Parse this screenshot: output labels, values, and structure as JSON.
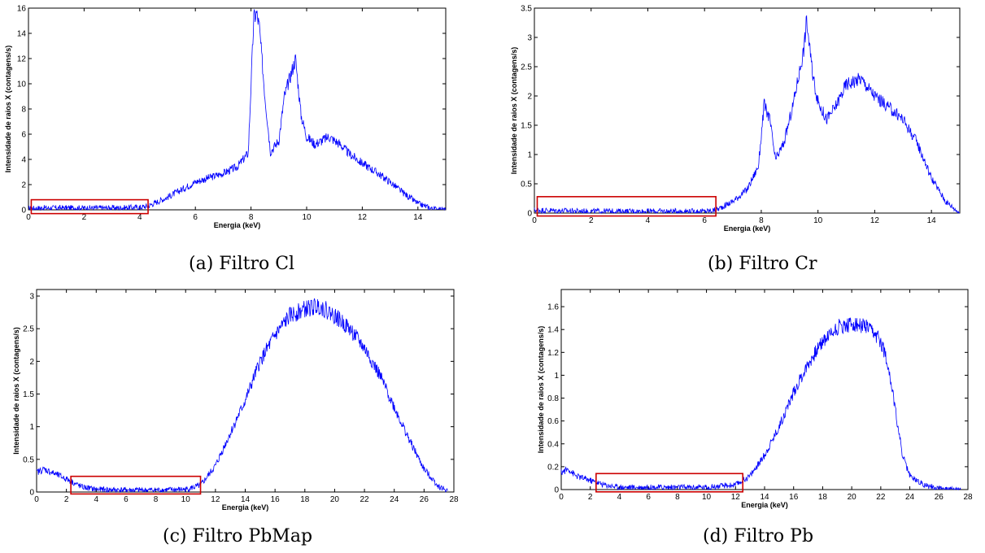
{
  "chart_data": [
    {
      "id": "a",
      "type": "line",
      "caption": "(a) Filtro Cl",
      "xlabel": "Energia (keV)",
      "ylabel": "Intensidade de raios X (contagens/s)",
      "xlim": [
        0,
        15
      ],
      "ylim": [
        0,
        16
      ],
      "xticks": [
        0,
        2,
        4,
        6,
        8,
        10,
        12,
        14
      ],
      "yticks": [
        0,
        2,
        4,
        6,
        8,
        10,
        12,
        14,
        16
      ],
      "line_color": "#0000ff",
      "highlight_color": "#cc0000",
      "highlight_region": {
        "x": [
          0.1,
          4.3
        ],
        "y": [
          -0.3,
          0.8
        ]
      },
      "series": [
        {
          "x": [
            0,
            0.5,
            1,
            2,
            3,
            4,
            4.3,
            5,
            6,
            7,
            7.5,
            7.9,
            8.1,
            8.2,
            8.3,
            8.5,
            8.7,
            9,
            9.2,
            9.4,
            9.6,
            9.8,
            10,
            10.3,
            10.8,
            11.2,
            11.5,
            12,
            12.5,
            13,
            13.5,
            14,
            14.5,
            15
          ],
          "y": [
            0.1,
            0.15,
            0.15,
            0.15,
            0.15,
            0.2,
            0.3,
            1.0,
            2.2,
            2.9,
            3.4,
            4.5,
            15.2,
            15.6,
            14.5,
            9.0,
            4.6,
            5.5,
            9.0,
            10.5,
            12.0,
            7.5,
            5.8,
            5.2,
            5.8,
            5.2,
            4.5,
            3.7,
            3.0,
            2.2,
            1.3,
            0.5,
            0.1,
            0.0
          ]
        }
      ]
    },
    {
      "id": "b",
      "type": "line",
      "caption": "(b) Filtro Cr",
      "xlabel": "Energia (keV)",
      "ylabel": "Intensidade de raios X (contagens/s)",
      "xlim": [
        0,
        15
      ],
      "ylim": [
        0,
        3.5
      ],
      "xticks": [
        0,
        2,
        4,
        6,
        8,
        10,
        12,
        14
      ],
      "yticks": [
        0,
        0.5,
        1,
        1.5,
        2,
        2.5,
        3,
        3.5
      ],
      "line_color": "#0000ff",
      "highlight_color": "#cc0000",
      "highlight_region": {
        "x": [
          0.1,
          6.4
        ],
        "y": [
          -0.05,
          0.28
        ]
      },
      "series": [
        {
          "x": [
            0,
            1,
            2,
            3,
            4,
            5,
            6,
            6.4,
            7,
            7.5,
            7.9,
            8.1,
            8.3,
            8.5,
            8.8,
            9.1,
            9.3,
            9.5,
            9.6,
            9.8,
            10,
            10.3,
            10.6,
            11,
            11.5,
            12,
            12.5,
            13,
            13.5,
            14,
            14.5,
            15
          ],
          "y": [
            0.05,
            0.04,
            0.03,
            0.03,
            0.03,
            0.03,
            0.03,
            0.05,
            0.2,
            0.4,
            0.8,
            1.85,
            1.6,
            0.9,
            1.2,
            1.8,
            2.3,
            2.8,
            3.3,
            2.4,
            1.9,
            1.6,
            1.8,
            2.2,
            2.3,
            2.0,
            1.8,
            1.6,
            1.2,
            0.6,
            0.2,
            0.0
          ]
        }
      ]
    },
    {
      "id": "c",
      "type": "line",
      "caption": "(c) Filtro PbMap",
      "xlabel": "Energia (keV)",
      "ylabel": "Intensidade de raios X (contagens/s)",
      "xlim": [
        0,
        28
      ],
      "ylim": [
        0,
        3.1
      ],
      "xticks": [
        0,
        2,
        4,
        6,
        8,
        10,
        12,
        14,
        16,
        18,
        20,
        22,
        24,
        26,
        28
      ],
      "yticks": [
        0,
        0.5,
        1,
        1.5,
        2,
        2.5,
        3
      ],
      "line_color": "#0000ff",
      "highlight_color": "#cc0000",
      "highlight_region": {
        "x": [
          2.3,
          11.0
        ],
        "y": [
          -0.03,
          0.24
        ]
      },
      "series": [
        {
          "x": [
            0,
            0.5,
            1,
            2,
            3,
            4,
            6,
            8,
            10,
            11,
            12,
            13,
            14,
            15,
            16,
            17,
            18,
            19,
            20,
            21,
            22,
            23,
            24,
            25,
            26,
            27,
            27.6
          ],
          "y": [
            0.3,
            0.35,
            0.3,
            0.2,
            0.08,
            0.04,
            0.03,
            0.03,
            0.04,
            0.1,
            0.4,
            0.9,
            1.4,
            2.0,
            2.4,
            2.7,
            2.8,
            2.85,
            2.7,
            2.5,
            2.2,
            1.8,
            1.3,
            0.8,
            0.35,
            0.08,
            0.02
          ]
        }
      ]
    },
    {
      "id": "d",
      "type": "line",
      "caption": "(d) Filtro Pb",
      "xlabel": "Energia (keV)",
      "ylabel": "Intensidade de raios X (contagens/s)",
      "xlim": [
        0,
        28
      ],
      "ylim": [
        0,
        1.75
      ],
      "xticks": [
        0,
        2,
        4,
        6,
        8,
        10,
        12,
        14,
        16,
        18,
        20,
        22,
        24,
        26,
        28
      ],
      "yticks": [
        0,
        0.2,
        0.4,
        0.6,
        0.8,
        1,
        1.2,
        1.4,
        1.6
      ],
      "line_color": "#0000ff",
      "highlight_color": "#cc0000",
      "highlight_region": {
        "x": [
          2.4,
          12.5
        ],
        "y": [
          -0.02,
          0.14
        ]
      },
      "series": [
        {
          "x": [
            0,
            0.5,
            1,
            2,
            3,
            4,
            6,
            8,
            10,
            12,
            13,
            14,
            15,
            16,
            17,
            18,
            19,
            20,
            21,
            22,
            22.5,
            23,
            23.5,
            24,
            25,
            26,
            27,
            27.5
          ],
          "y": [
            0.15,
            0.18,
            0.12,
            0.08,
            0.04,
            0.02,
            0.02,
            0.02,
            0.02,
            0.04,
            0.12,
            0.3,
            0.55,
            0.85,
            1.1,
            1.3,
            1.42,
            1.45,
            1.42,
            1.3,
            1.1,
            0.7,
            0.3,
            0.12,
            0.04,
            0.01,
            0.0,
            0.0
          ]
        }
      ]
    }
  ]
}
